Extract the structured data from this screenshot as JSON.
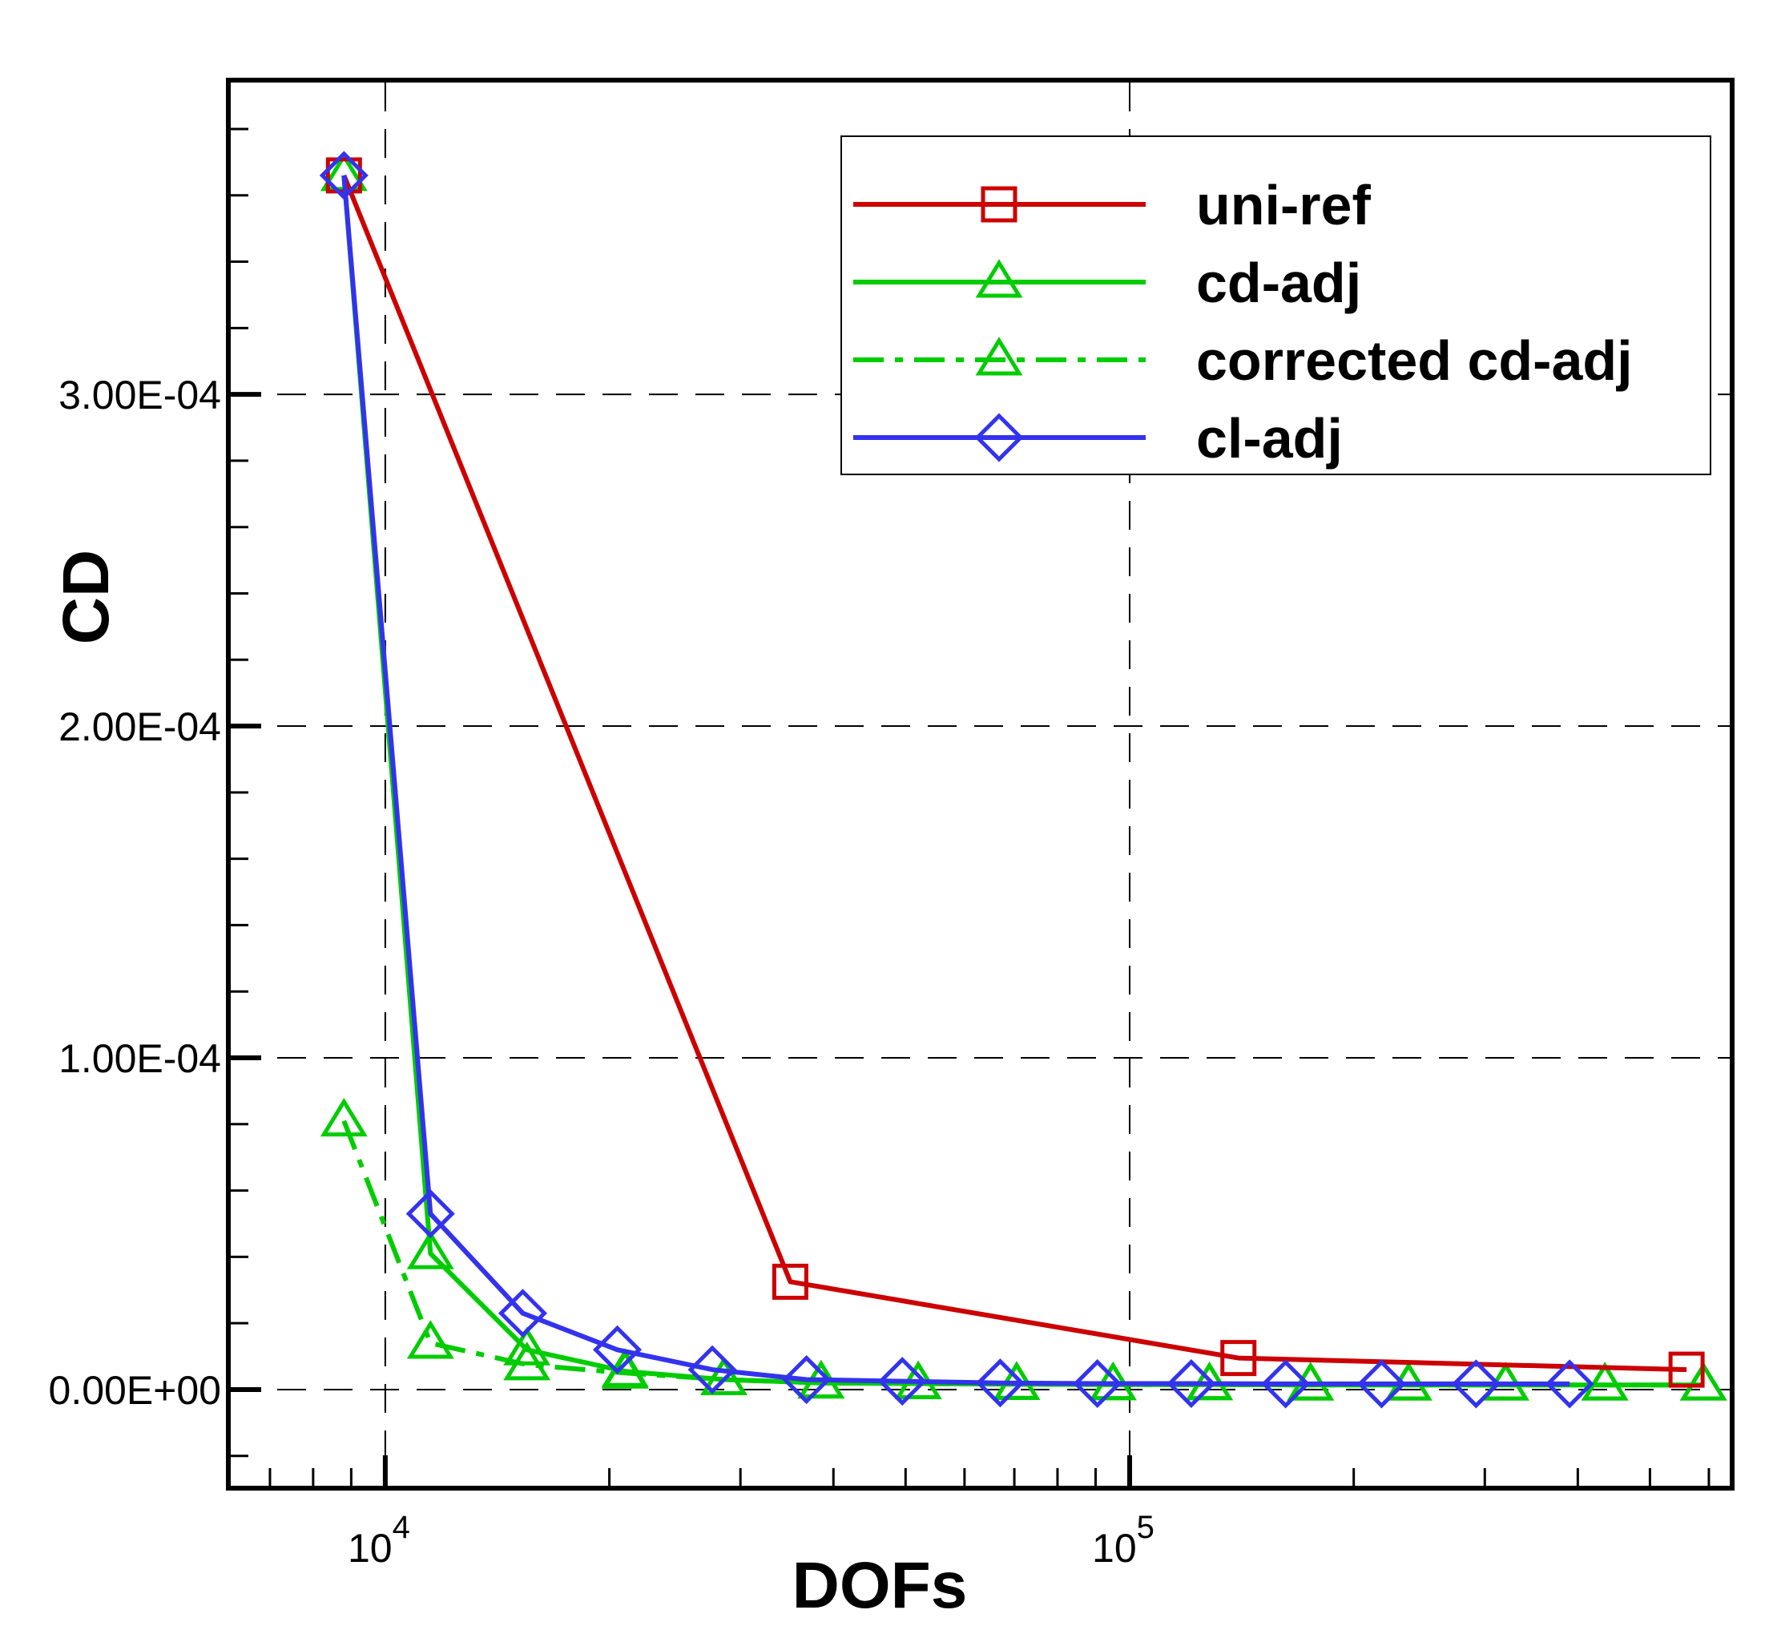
{
  "chart_data": {
    "type": "line",
    "xlabel": "DOFs",
    "ylabel": "CD",
    "xscale": "log",
    "xlim": [
      6200,
      640000
    ],
    "ylim": [
      -2.9e-05,
      0.000394
    ],
    "grid": true,
    "legend_position": "top-right",
    "y_ticks": [
      {
        "value": 0.0,
        "label": "0.00E+00"
      },
      {
        "value": 0.0001,
        "label": "1.00E-04"
      },
      {
        "value": 0.0002,
        "label": "2.00E-04"
      },
      {
        "value": 0.0003,
        "label": "3.00E-04"
      }
    ],
    "x_ticks": [
      {
        "value": 10000,
        "base": "10",
        "exp": "4"
      },
      {
        "value": 100000,
        "base": "10",
        "exp": "5"
      }
    ],
    "series": [
      {
        "name": "uni-ref",
        "color": "#cc0000",
        "linestyle": "solid",
        "marker": "square",
        "x": [
          8800,
          35000,
          140000,
          560000
        ],
        "y": [
          0.000366,
          3.25e-05,
          9.5e-06,
          6e-06
        ]
      },
      {
        "name": "cd-adj",
        "color": "#00cc00",
        "linestyle": "solid",
        "marker": "triangle",
        "x": [
          8800,
          11500,
          15500,
          21000,
          28500,
          38500,
          52000,
          70500,
          95000,
          128000,
          175000,
          237000,
          320000,
          435000,
          590000
        ],
        "y": [
          0.000366,
          4.1e-05,
          1.2e-05,
          5.5e-06,
          3e-06,
          2e-06,
          1.8e-06,
          1.6e-06,
          1.5e-06,
          1.5e-06,
          1.4e-06,
          1.4e-06,
          1.4e-06,
          1.4e-06,
          1.4e-06
        ]
      },
      {
        "name": "corrected cd-adj",
        "color": "#00cc00",
        "linestyle": "dashdot",
        "marker": "triangle",
        "x": [
          8800,
          11500,
          15500,
          21000,
          28500,
          38500,
          52000,
          70500,
          95000,
          128000,
          175000,
          237000,
          320000,
          435000,
          590000
        ],
        "y": [
          8.1e-05,
          1.4e-05,
          7.5e-06,
          5e-06,
          3e-06,
          2e-06,
          1.8e-06,
          1.6e-06,
          1.5e-06,
          1.5e-06,
          1.4e-06,
          1.4e-06,
          1.4e-06,
          1.4e-06,
          1.4e-06
        ]
      },
      {
        "name": "cl-adj",
        "color": "#3333ee",
        "linestyle": "solid",
        "marker": "diamond",
        "x": [
          8800,
          11500,
          15300,
          20500,
          27500,
          36800,
          49500,
          67000,
          90500,
          121000,
          162000,
          218000,
          292000,
          390000
        ],
        "y": [
          0.000366,
          5.3e-05,
          2.3e-05,
          1.2e-05,
          6e-06,
          3e-06,
          2.5e-06,
          2e-06,
          1.8e-06,
          1.8e-06,
          1.7e-06,
          1.7e-06,
          1.7e-06,
          1.7e-06
        ]
      }
    ]
  }
}
